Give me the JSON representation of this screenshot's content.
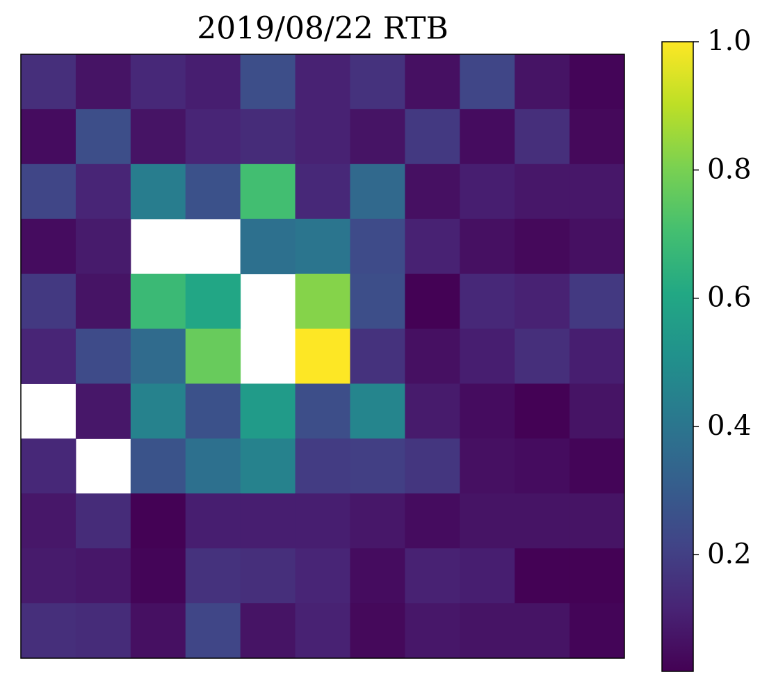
{
  "chart_data": {
    "type": "heatmap",
    "title": "2019/08/22 RTB",
    "colormap": "viridis",
    "z": [
      [
        0.15,
        0.07,
        0.13,
        0.1,
        0.25,
        0.11,
        0.16,
        0.06,
        0.22,
        0.07,
        0.03
      ],
      [
        0.05,
        0.25,
        0.07,
        0.12,
        0.14,
        0.11,
        0.07,
        0.18,
        0.05,
        0.15,
        0.04
      ],
      [
        0.22,
        0.12,
        0.43,
        0.26,
        0.7,
        0.13,
        0.35,
        0.06,
        0.1,
        0.08,
        0.08
      ],
      [
        0.05,
        0.09,
        null,
        null,
        0.38,
        0.4,
        0.24,
        0.11,
        0.06,
        0.04,
        0.06
      ],
      [
        0.18,
        0.07,
        0.68,
        0.6,
        null,
        0.82,
        0.25,
        0.02,
        0.13,
        0.11,
        0.18
      ],
      [
        0.12,
        0.24,
        0.36,
        0.77,
        null,
        1.0,
        0.16,
        0.06,
        0.1,
        0.15,
        0.1
      ],
      [
        null,
        0.08,
        0.45,
        0.26,
        0.55,
        0.25,
        0.46,
        0.09,
        0.05,
        0.02,
        0.07
      ],
      [
        0.13,
        null,
        0.27,
        0.38,
        0.45,
        0.19,
        0.2,
        0.17,
        0.06,
        0.05,
        0.03
      ],
      [
        0.08,
        0.14,
        0.02,
        0.1,
        0.1,
        0.1,
        0.08,
        0.05,
        0.07,
        0.07,
        0.07
      ],
      [
        0.09,
        0.08,
        0.03,
        0.16,
        0.15,
        0.12,
        0.05,
        0.11,
        0.1,
        0.02,
        0.02
      ],
      [
        0.15,
        0.14,
        0.06,
        0.22,
        0.07,
        0.11,
        0.04,
        0.08,
        0.07,
        0.07,
        0.03
      ]
    ],
    "zlim": [
      0.018,
      1.0
    ],
    "zticks": [
      0.2,
      0.4,
      0.6,
      0.8,
      {
        "value": 1.0,
        "label": "1.0"
      }
    ]
  }
}
